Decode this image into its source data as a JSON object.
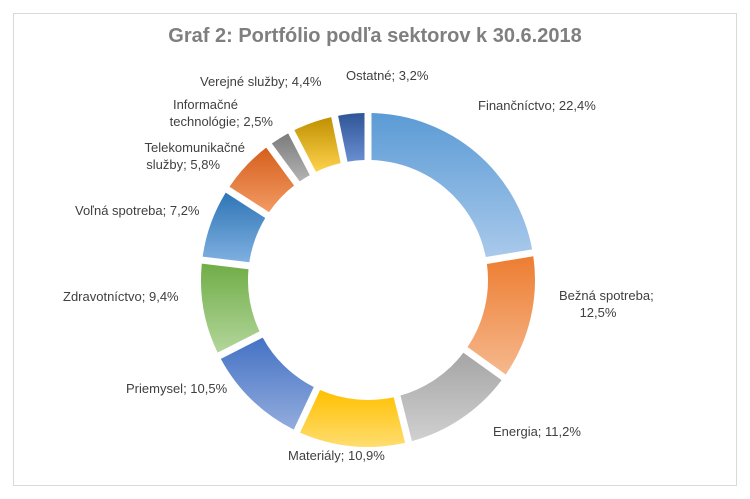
{
  "chart_data": {
    "type": "pie",
    "title": "Graf 2: Portfólio podľa sektorov k 30.6.2018",
    "series": [
      {
        "values": [
          {
            "label": "Finančníctvo",
            "value": 22.4,
            "value_label": "22,4%",
            "color_top": "#5b9bd5",
            "color_bottom": "#a9c9eb"
          },
          {
            "label": "Bežná spotreba",
            "value": 12.5,
            "value_label": "12,5%",
            "color_top": "#ed7d31",
            "color_bottom": "#f6b88e"
          },
          {
            "label": "Energia",
            "value": 11.2,
            "value_label": "11,2%",
            "color_top": "#a5a5a5",
            "color_bottom": "#d0d0d0"
          },
          {
            "label": "Materiály",
            "value": 10.9,
            "value_label": "10,9%",
            "color_top": "#ffc000",
            "color_bottom": "#ffdd70"
          },
          {
            "label": "Priemysel",
            "value": 10.5,
            "value_label": "10,5%",
            "color_top": "#4472c4",
            "color_bottom": "#93acdd"
          },
          {
            "label": "Zdravotníctvo",
            "value": 9.4,
            "value_label": "9,4%",
            "color_top": "#70ad47",
            "color_bottom": "#b3d69b"
          },
          {
            "label": "Voľná spotreba",
            "value": 7.2,
            "value_label": "7,2%",
            "color_top": "#2e75b6",
            "color_bottom": "#7fb0e0"
          },
          {
            "label": "Telekomunikačné služby",
            "value": 5.8,
            "value_label": "5,8%",
            "color_top": "#d55f1d",
            "color_bottom": "#f29a63"
          },
          {
            "label": "Informačné technológie",
            "value": 2.5,
            "value_label": "2,5%",
            "color_top": "#7b7b7b",
            "color_bottom": "#b3b3b3"
          },
          {
            "label": "Verejné služby",
            "value": 4.4,
            "value_label": "4,4%",
            "color_top": "#bf9000",
            "color_bottom": "#ffd24d"
          },
          {
            "label": "Ostatné",
            "value": 3.2,
            "value_label": "3,2%",
            "color_top": "#2f5597",
            "color_bottom": "#6a8fd0"
          }
        ]
      }
    ],
    "legend": "none",
    "data_labels": "outside"
  }
}
